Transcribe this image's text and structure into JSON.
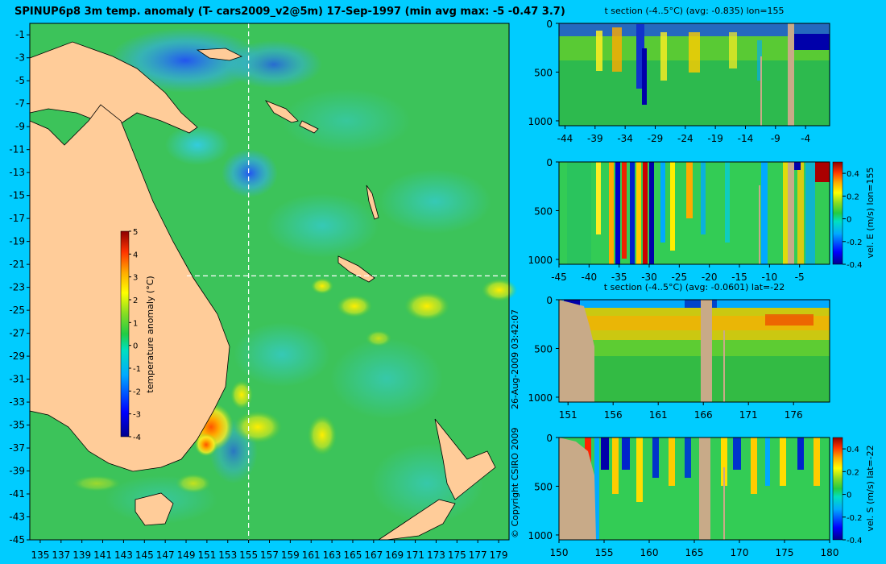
{
  "title": "SPINUP6p8 3m temp. anomaly (T- cars2009_v2@5m) 17-Sep-1997 (min avg max: -5 -0.47 3.7)",
  "copyright": "© Copyright CSIRO 2009",
  "timestamp": "26-Aug-2009 03:42:07",
  "colors": {
    "background": "#00ccff",
    "land": "#ffcc99",
    "section_land": "#c8aa88",
    "crosshair": "#ffffff"
  },
  "chart_data": [
    {
      "type": "heatmap",
      "name": "map",
      "title": "SPINUP6p8 3m temp. anomaly (T- cars2009_v2@5m) 17-Sep-1997 (min avg max: -5 -0.47 3.7)",
      "x_ticks": [
        "135",
        "137",
        "139",
        "141",
        "143",
        "145",
        "147",
        "149",
        "151",
        "153",
        "155",
        "157",
        "159",
        "161",
        "163",
        "165",
        "167",
        "169",
        "171",
        "173",
        "175",
        "177",
        "179"
      ],
      "y_ticks": [
        "-1",
        "-3",
        "-5",
        "-7",
        "-9",
        "-11",
        "-13",
        "-15",
        "-17",
        "-19",
        "-21",
        "-23",
        "-25",
        "-27",
        "-29",
        "-31",
        "-33",
        "-35",
        "-37",
        "-39",
        "-41",
        "-43",
        "-45"
      ],
      "xlim": [
        134,
        180
      ],
      "ylim": [
        -45,
        0
      ],
      "crosshair": {
        "lon": 155,
        "lat": -22
      },
      "colorbar": {
        "label": "temperature anomaly (°C)",
        "ticks": [
          "5",
          "4",
          "3",
          "2",
          "1",
          "0",
          "-1",
          "-2",
          "-3",
          "-4"
        ],
        "range": [
          -4,
          5
        ]
      }
    },
    {
      "type": "heatmap",
      "name": "t-section-lon155",
      "title": "t section (-4..5°C) (avg: -0.835) lon=155",
      "x_ticks": [
        "-44",
        "-39",
        "-34",
        "-29",
        "-24",
        "-19",
        "-14",
        "-9",
        "-4"
      ],
      "xlim": [
        -45,
        0
      ],
      "y_ticks": [
        "0",
        "500",
        "1000"
      ],
      "ylim": [
        1050,
        0
      ]
    },
    {
      "type": "heatmap",
      "name": "vel-e-section-lon155",
      "title": "",
      "x_ticks": [
        "-45",
        "-40",
        "-35",
        "-30",
        "-25",
        "-20",
        "-15",
        "-10",
        "-5"
      ],
      "xlim": [
        -45,
        0
      ],
      "y_ticks": [
        "0",
        "500",
        "1000"
      ],
      "ylim": [
        1050,
        0
      ],
      "colorbar": {
        "label": "vel. E (m/s) lon=155",
        "ticks": [
          "0.4",
          "0.2",
          "0",
          "-0.2",
          "-0.4"
        ],
        "range": [
          -0.4,
          0.5
        ]
      }
    },
    {
      "type": "heatmap",
      "name": "t-section-lat-22",
      "title": "t section (-4..5°C) (avg: -0.0601) lat=-22",
      "x_ticks": [
        "151",
        "156",
        "161",
        "166",
        "171",
        "176"
      ],
      "xlim": [
        150,
        180
      ],
      "y_ticks": [
        "0",
        "500",
        "1000"
      ],
      "ylim": [
        1050,
        0
      ]
    },
    {
      "type": "heatmap",
      "name": "vel-s-section-lat-22",
      "title": "",
      "x_ticks": [
        "150",
        "155",
        "160",
        "165",
        "170",
        "175",
        "180"
      ],
      "xlim": [
        150,
        180
      ],
      "y_ticks": [
        "0",
        "500",
        "1000"
      ],
      "ylim": [
        1050,
        0
      ],
      "colorbar": {
        "label": "vel. S (m/s) lat=-22",
        "ticks": [
          "0.4",
          "0.2",
          "0",
          "-0.2",
          "-0.4"
        ],
        "range": [
          -0.4,
          0.5
        ]
      }
    }
  ]
}
